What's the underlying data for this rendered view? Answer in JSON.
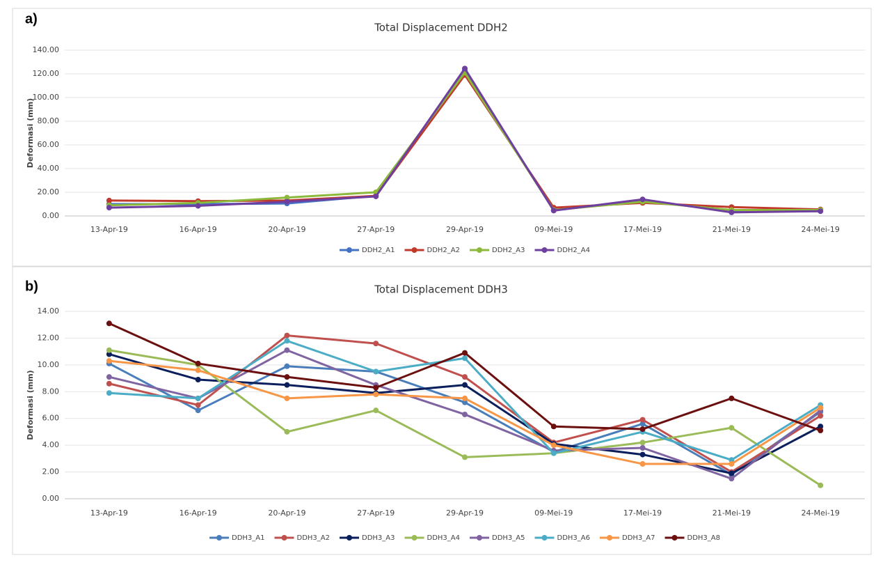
{
  "chart_data": [
    {
      "type": "line",
      "label": "a)",
      "title": "Total Displacement DDH2",
      "y_label": "Deformasi (mm)",
      "categories": [
        "13-Apr-19",
        "16-Apr-19",
        "20-Apr-19",
        "27-Apr-19",
        "29-Apr-19",
        "09-Mei-19",
        "17-Mei-19",
        "21-Mei-19",
        "24-Mei-19"
      ],
      "ylim": [
        0,
        140
      ],
      "yticks": [
        {
          "value": 0,
          "label": "0.00"
        },
        {
          "value": 20,
          "label": "20.00"
        },
        {
          "value": 40,
          "label": "40.00"
        },
        {
          "value": 60,
          "label": "60.00"
        },
        {
          "value": 80,
          "label": "80.00"
        },
        {
          "value": 100,
          "label": "100.00"
        },
        {
          "value": 120,
          "label": "120.00"
        },
        {
          "value": 140,
          "label": "140.00"
        }
      ],
      "grid": true,
      "legend": "bottom",
      "series": [
        {
          "name": "DDH2_A1",
          "color": "#4472c4",
          "values": [
            10,
            10,
            10.5,
            17,
            123,
            5,
            13,
            4,
            5
          ]
        },
        {
          "name": "DDH2_A2",
          "color": "#c0392b",
          "values": [
            13,
            12.5,
            13,
            17,
            119,
            7,
            11,
            7.5,
            5.5
          ]
        },
        {
          "name": "DDH2_A3",
          "color": "#8cb83c",
          "values": [
            9,
            11,
            15.5,
            20,
            121,
            5,
            12,
            5,
            5
          ]
        },
        {
          "name": "DDH2_A4",
          "color": "#6f3fa0",
          "values": [
            7,
            8.5,
            12,
            16.5,
            124.5,
            4.5,
            14,
            3,
            4
          ]
        }
      ]
    },
    {
      "type": "line",
      "label": "b)",
      "title": "Total Displacement DDH3",
      "y_label": "Deformasi (mm)",
      "categories": [
        "13-Apr-19",
        "16-Apr-19",
        "20-Apr-19",
        "27-Apr-19",
        "29-Apr-19",
        "09-Mei-19",
        "17-Mei-19",
        "21-Mei-19",
        "24-Mei-19"
      ],
      "ylim": [
        0,
        14
      ],
      "yticks": [
        {
          "value": 0,
          "label": "0.00"
        },
        {
          "value": 2,
          "label": "2.00"
        },
        {
          "value": 4,
          "label": "4.00"
        },
        {
          "value": 6,
          "label": "6.00"
        },
        {
          "value": 8,
          "label": "8.00"
        },
        {
          "value": 10,
          "label": "10.00"
        },
        {
          "value": 12,
          "label": "12.00"
        },
        {
          "value": 14,
          "label": "14.00"
        }
      ],
      "grid": true,
      "legend": "bottom",
      "series": [
        {
          "name": "DDH3_A1",
          "color": "#4a7ebb",
          "values": [
            10.1,
            6.6,
            9.9,
            9.5,
            7.2,
            3.5,
            5.6,
            1.8,
            6.5
          ]
        },
        {
          "name": "DDH3_A2",
          "color": "#c0504d",
          "values": [
            8.6,
            7.0,
            12.2,
            11.6,
            9.1,
            4.2,
            5.9,
            2.0,
            6.2
          ]
        },
        {
          "name": "DDH3_A3",
          "color": "#0b1f5c",
          "values": [
            10.8,
            8.9,
            8.5,
            7.9,
            8.5,
            4.1,
            3.3,
            1.9,
            5.4
          ]
        },
        {
          "name": "DDH3_A4",
          "color": "#9bbb59",
          "values": [
            11.1,
            10.0,
            5.0,
            6.6,
            3.1,
            3.4,
            4.2,
            5.3,
            1.0
          ]
        },
        {
          "name": "DDH3_A5",
          "color": "#8064a2",
          "values": [
            9.1,
            7.5,
            11.1,
            8.5,
            6.3,
            3.6,
            3.8,
            1.5,
            6.6
          ]
        },
        {
          "name": "DDH3_A6",
          "color": "#4bacc6",
          "values": [
            7.9,
            7.5,
            11.8,
            9.5,
            10.5,
            3.4,
            5.0,
            2.9,
            7.0
          ]
        },
        {
          "name": "DDH3_A7",
          "color": "#f79646",
          "values": [
            10.3,
            9.6,
            7.5,
            7.8,
            7.5,
            4.0,
            2.6,
            2.6,
            6.8
          ]
        },
        {
          "name": "DDH3_A8",
          "color": "#6b0f0f",
          "values": [
            13.1,
            10.1,
            9.1,
            8.3,
            10.9,
            5.4,
            5.2,
            7.5,
            5.1
          ]
        }
      ]
    }
  ]
}
